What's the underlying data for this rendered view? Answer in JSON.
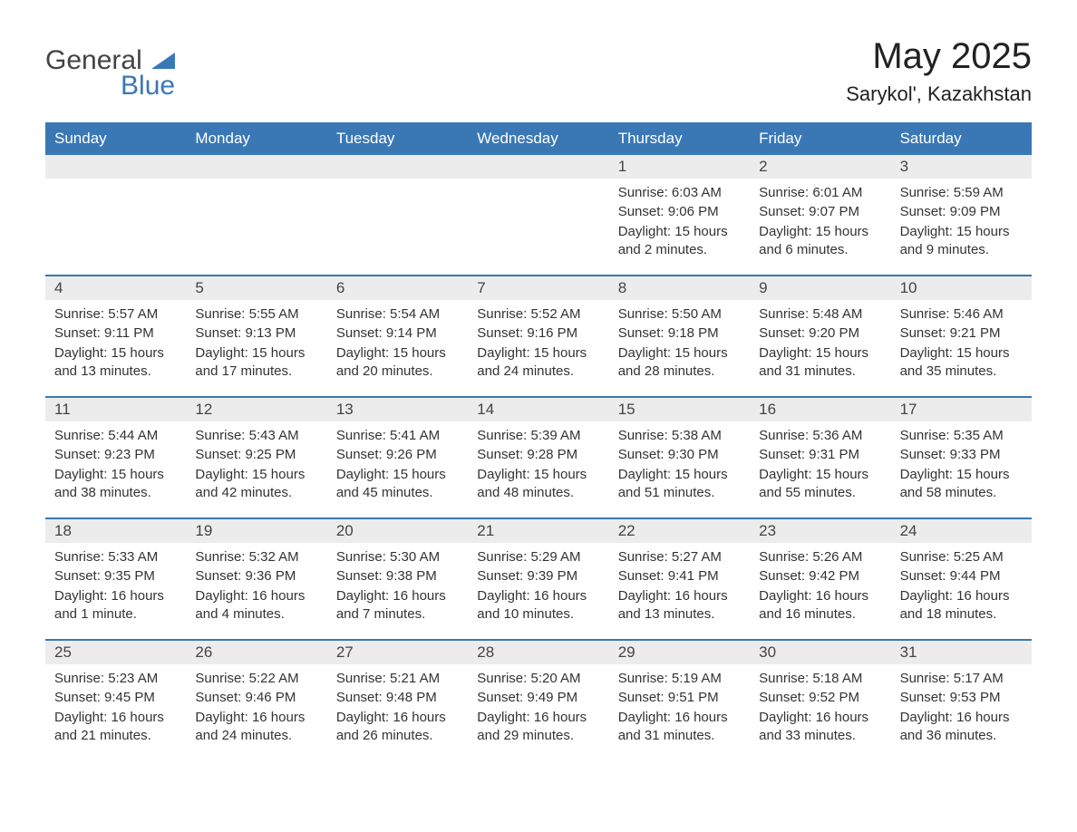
{
  "logo": {
    "general": "General",
    "blue": "Blue",
    "shape_color": "#3a78b5"
  },
  "title": "May 2025",
  "location": "Sarykol', Kazakhstan",
  "colors": {
    "header_bg": "#3a78b5",
    "header_text": "#ffffff",
    "daynum_bg": "#ececec",
    "border": "#3a78b5",
    "text": "#333333"
  },
  "weekdays": [
    "Sunday",
    "Monday",
    "Tuesday",
    "Wednesday",
    "Thursday",
    "Friday",
    "Saturday"
  ],
  "weeks": [
    [
      {
        "empty": true
      },
      {
        "empty": true
      },
      {
        "empty": true
      },
      {
        "empty": true
      },
      {
        "day": "1",
        "sunrise": "Sunrise: 6:03 AM",
        "sunset": "Sunset: 9:06 PM",
        "daylight": "Daylight: 15 hours and 2 minutes."
      },
      {
        "day": "2",
        "sunrise": "Sunrise: 6:01 AM",
        "sunset": "Sunset: 9:07 PM",
        "daylight": "Daylight: 15 hours and 6 minutes."
      },
      {
        "day": "3",
        "sunrise": "Sunrise: 5:59 AM",
        "sunset": "Sunset: 9:09 PM",
        "daylight": "Daylight: 15 hours and 9 minutes."
      }
    ],
    [
      {
        "day": "4",
        "sunrise": "Sunrise: 5:57 AM",
        "sunset": "Sunset: 9:11 PM",
        "daylight": "Daylight: 15 hours and 13 minutes."
      },
      {
        "day": "5",
        "sunrise": "Sunrise: 5:55 AM",
        "sunset": "Sunset: 9:13 PM",
        "daylight": "Daylight: 15 hours and 17 minutes."
      },
      {
        "day": "6",
        "sunrise": "Sunrise: 5:54 AM",
        "sunset": "Sunset: 9:14 PM",
        "daylight": "Daylight: 15 hours and 20 minutes."
      },
      {
        "day": "7",
        "sunrise": "Sunrise: 5:52 AM",
        "sunset": "Sunset: 9:16 PM",
        "daylight": "Daylight: 15 hours and 24 minutes."
      },
      {
        "day": "8",
        "sunrise": "Sunrise: 5:50 AM",
        "sunset": "Sunset: 9:18 PM",
        "daylight": "Daylight: 15 hours and 28 minutes."
      },
      {
        "day": "9",
        "sunrise": "Sunrise: 5:48 AM",
        "sunset": "Sunset: 9:20 PM",
        "daylight": "Daylight: 15 hours and 31 minutes."
      },
      {
        "day": "10",
        "sunrise": "Sunrise: 5:46 AM",
        "sunset": "Sunset: 9:21 PM",
        "daylight": "Daylight: 15 hours and 35 minutes."
      }
    ],
    [
      {
        "day": "11",
        "sunrise": "Sunrise: 5:44 AM",
        "sunset": "Sunset: 9:23 PM",
        "daylight": "Daylight: 15 hours and 38 minutes."
      },
      {
        "day": "12",
        "sunrise": "Sunrise: 5:43 AM",
        "sunset": "Sunset: 9:25 PM",
        "daylight": "Daylight: 15 hours and 42 minutes."
      },
      {
        "day": "13",
        "sunrise": "Sunrise: 5:41 AM",
        "sunset": "Sunset: 9:26 PM",
        "daylight": "Daylight: 15 hours and 45 minutes."
      },
      {
        "day": "14",
        "sunrise": "Sunrise: 5:39 AM",
        "sunset": "Sunset: 9:28 PM",
        "daylight": "Daylight: 15 hours and 48 minutes."
      },
      {
        "day": "15",
        "sunrise": "Sunrise: 5:38 AM",
        "sunset": "Sunset: 9:30 PM",
        "daylight": "Daylight: 15 hours and 51 minutes."
      },
      {
        "day": "16",
        "sunrise": "Sunrise: 5:36 AM",
        "sunset": "Sunset: 9:31 PM",
        "daylight": "Daylight: 15 hours and 55 minutes."
      },
      {
        "day": "17",
        "sunrise": "Sunrise: 5:35 AM",
        "sunset": "Sunset: 9:33 PM",
        "daylight": "Daylight: 15 hours and 58 minutes."
      }
    ],
    [
      {
        "day": "18",
        "sunrise": "Sunrise: 5:33 AM",
        "sunset": "Sunset: 9:35 PM",
        "daylight": "Daylight: 16 hours and 1 minute."
      },
      {
        "day": "19",
        "sunrise": "Sunrise: 5:32 AM",
        "sunset": "Sunset: 9:36 PM",
        "daylight": "Daylight: 16 hours and 4 minutes."
      },
      {
        "day": "20",
        "sunrise": "Sunrise: 5:30 AM",
        "sunset": "Sunset: 9:38 PM",
        "daylight": "Daylight: 16 hours and 7 minutes."
      },
      {
        "day": "21",
        "sunrise": "Sunrise: 5:29 AM",
        "sunset": "Sunset: 9:39 PM",
        "daylight": "Daylight: 16 hours and 10 minutes."
      },
      {
        "day": "22",
        "sunrise": "Sunrise: 5:27 AM",
        "sunset": "Sunset: 9:41 PM",
        "daylight": "Daylight: 16 hours and 13 minutes."
      },
      {
        "day": "23",
        "sunrise": "Sunrise: 5:26 AM",
        "sunset": "Sunset: 9:42 PM",
        "daylight": "Daylight: 16 hours and 16 minutes."
      },
      {
        "day": "24",
        "sunrise": "Sunrise: 5:25 AM",
        "sunset": "Sunset: 9:44 PM",
        "daylight": "Daylight: 16 hours and 18 minutes."
      }
    ],
    [
      {
        "day": "25",
        "sunrise": "Sunrise: 5:23 AM",
        "sunset": "Sunset: 9:45 PM",
        "daylight": "Daylight: 16 hours and 21 minutes."
      },
      {
        "day": "26",
        "sunrise": "Sunrise: 5:22 AM",
        "sunset": "Sunset: 9:46 PM",
        "daylight": "Daylight: 16 hours and 24 minutes."
      },
      {
        "day": "27",
        "sunrise": "Sunrise: 5:21 AM",
        "sunset": "Sunset: 9:48 PM",
        "daylight": "Daylight: 16 hours and 26 minutes."
      },
      {
        "day": "28",
        "sunrise": "Sunrise: 5:20 AM",
        "sunset": "Sunset: 9:49 PM",
        "daylight": "Daylight: 16 hours and 29 minutes."
      },
      {
        "day": "29",
        "sunrise": "Sunrise: 5:19 AM",
        "sunset": "Sunset: 9:51 PM",
        "daylight": "Daylight: 16 hours and 31 minutes."
      },
      {
        "day": "30",
        "sunrise": "Sunrise: 5:18 AM",
        "sunset": "Sunset: 9:52 PM",
        "daylight": "Daylight: 16 hours and 33 minutes."
      },
      {
        "day": "31",
        "sunrise": "Sunrise: 5:17 AM",
        "sunset": "Sunset: 9:53 PM",
        "daylight": "Daylight: 16 hours and 36 minutes."
      }
    ]
  ]
}
